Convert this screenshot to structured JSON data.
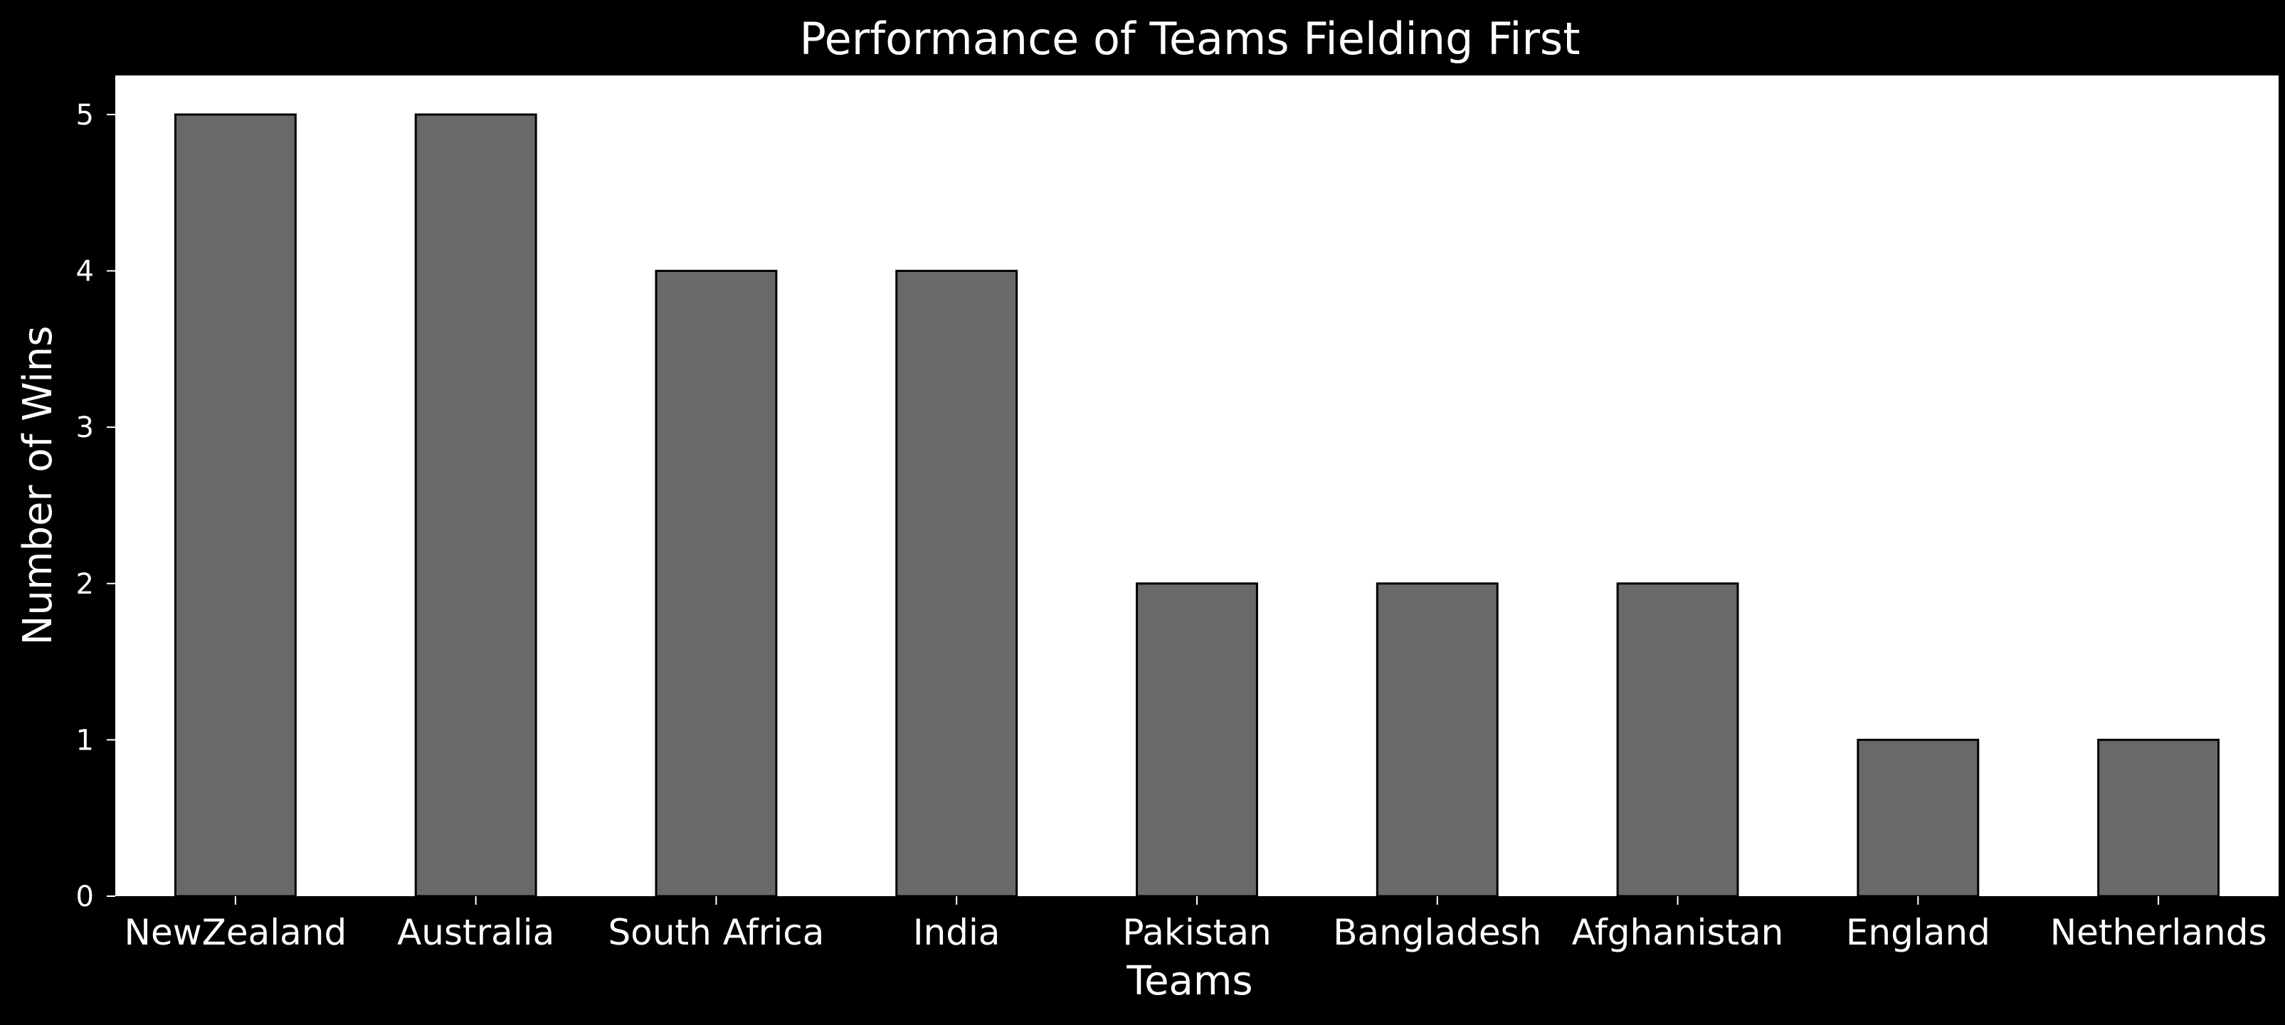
{
  "chart_data": {
    "type": "bar",
    "title": "Performance of Teams Fielding First",
    "xlabel": "Teams",
    "ylabel": "Number of Wins",
    "categories": [
      "NewZealand",
      "Australia",
      "South Africa",
      "India",
      "Pakistan",
      "Bangladesh",
      "Afghanistan",
      "England",
      "Netherlands"
    ],
    "values": [
      5,
      5,
      4,
      4,
      2,
      2,
      2,
      1,
      1
    ],
    "ylim": [
      0,
      5.25
    ],
    "yticks": [
      0,
      1,
      2,
      3,
      4,
      5
    ],
    "grid": false,
    "legend": "none"
  },
  "colors": {
    "figure_background": "#000000",
    "plot_background": "#ffffff",
    "bar_fill": "#696969",
    "bar_edge": "#000000",
    "text": "#ffffff"
  }
}
